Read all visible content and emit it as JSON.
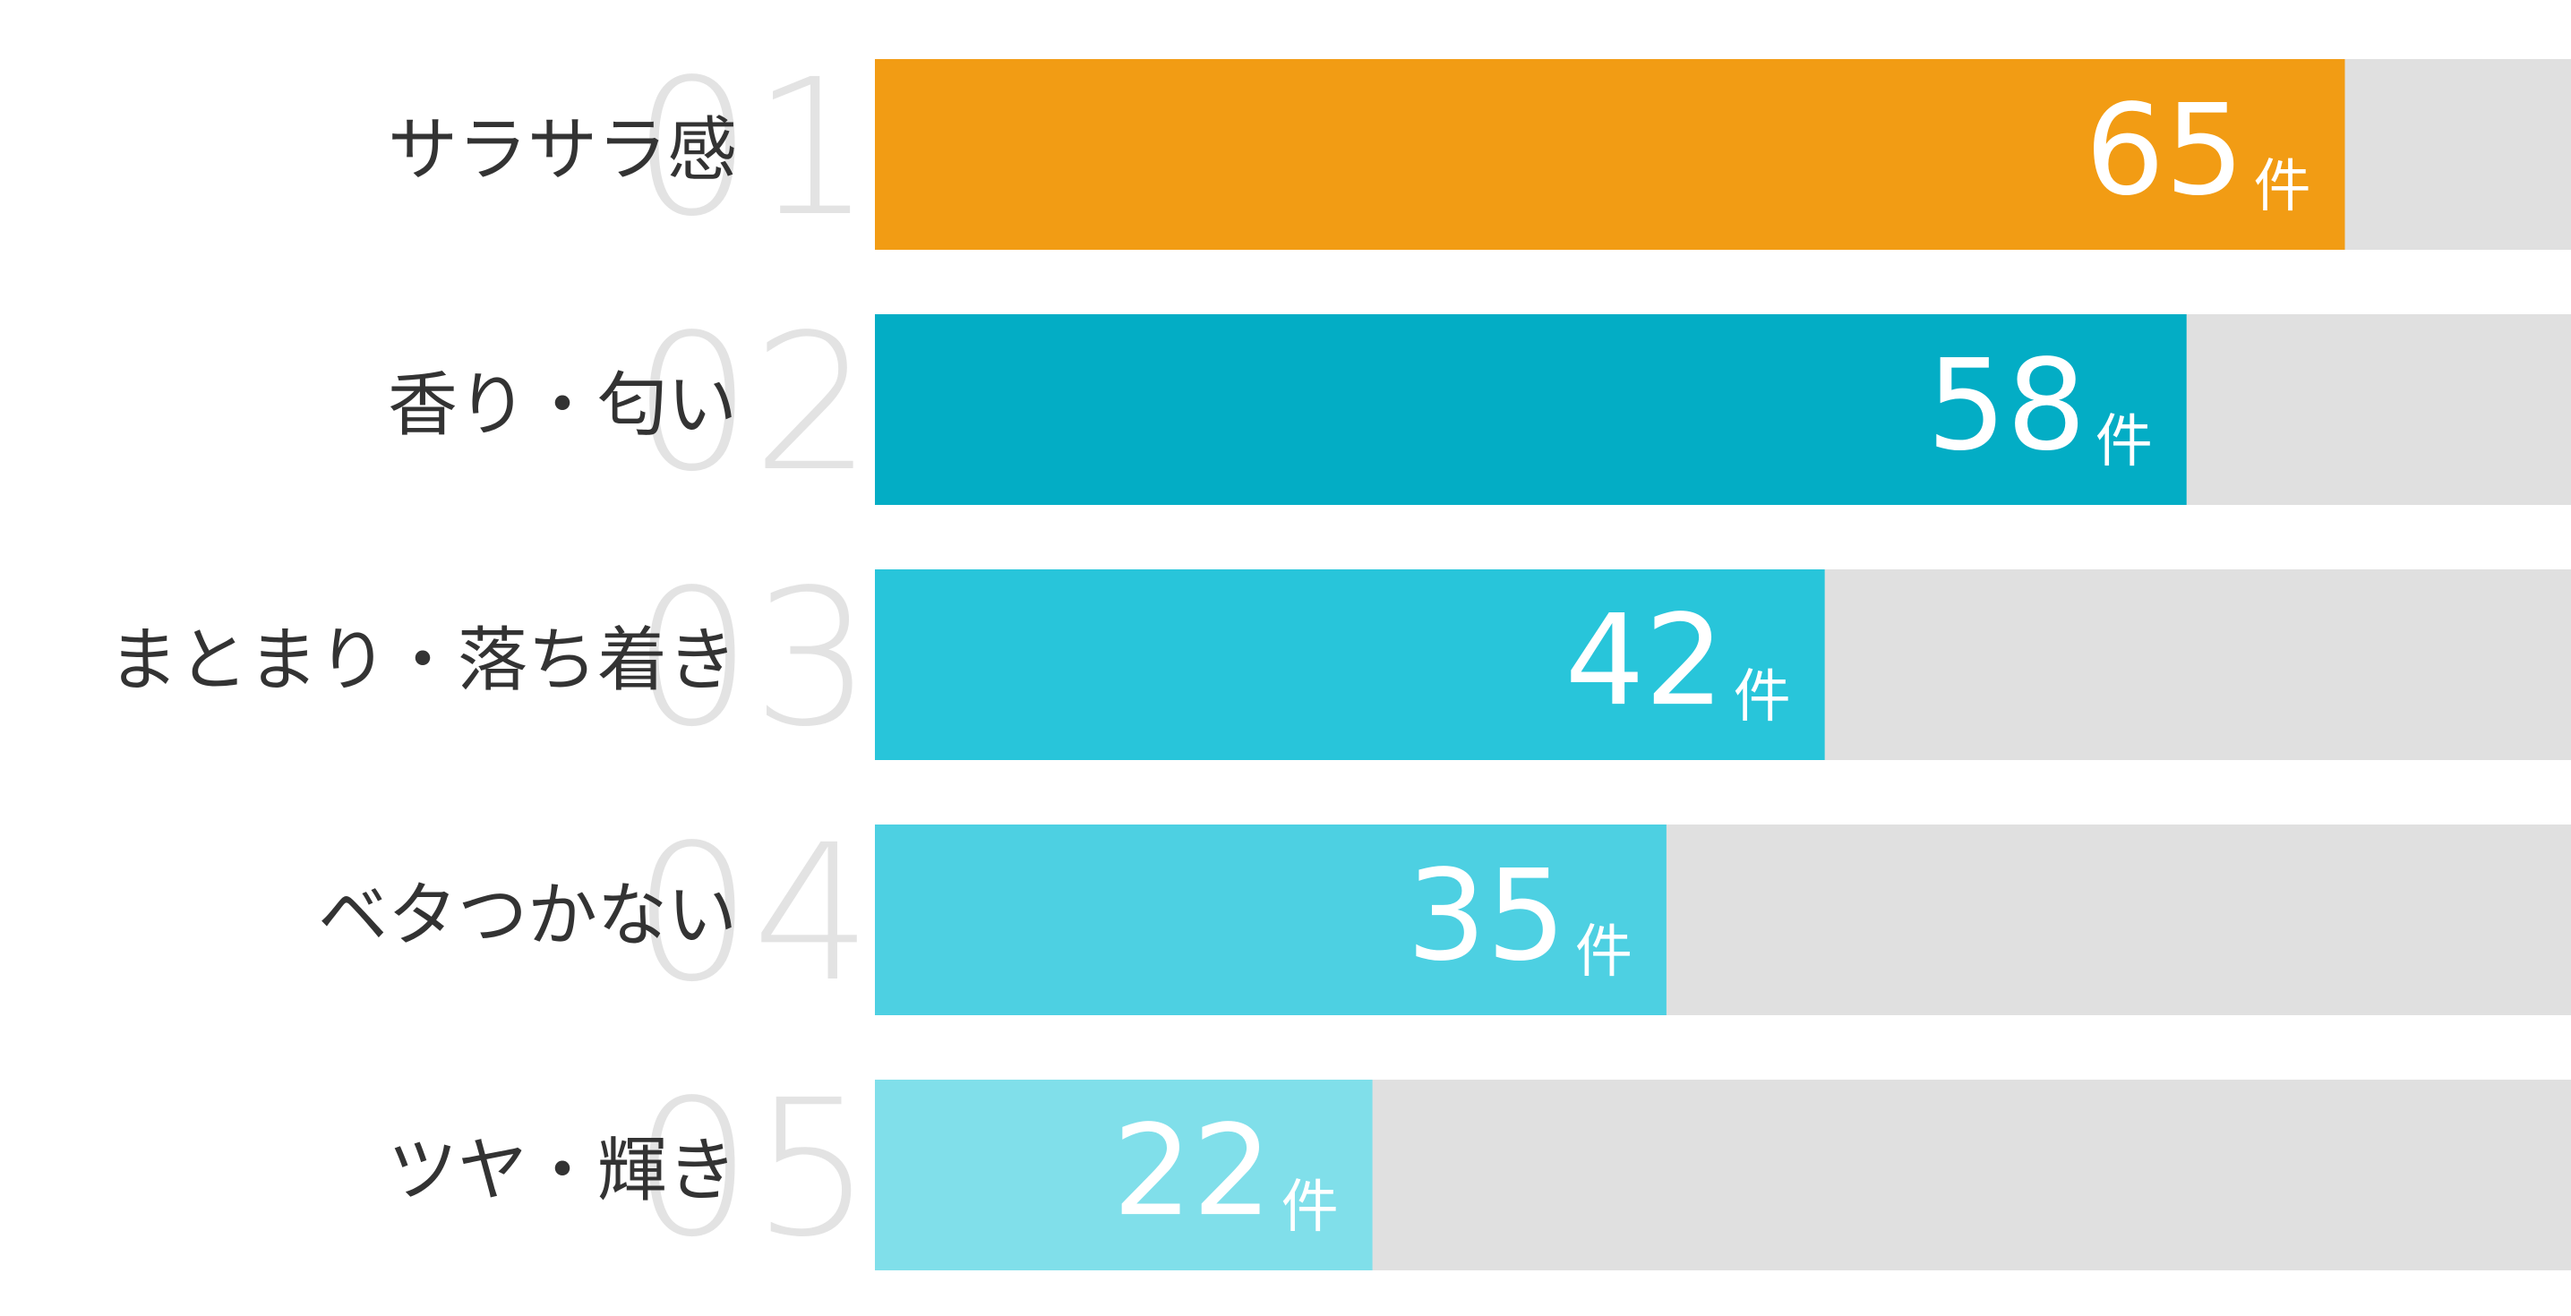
{
  "chart_data": {
    "type": "bar",
    "orientation": "horizontal",
    "categories": [
      "サラサラ感",
      "香り・匂い",
      "まとまり・落ち着き",
      "ベタつかない",
      "ツヤ・輝き"
    ],
    "ranks": [
      "01",
      "02",
      "03",
      "04",
      "05"
    ],
    "values": [
      65,
      58,
      42,
      35,
      22
    ],
    "unit": "件",
    "colors": [
      "#f29c14",
      "#03adc5",
      "#28c5da",
      "#4dd0e2",
      "#80dfea"
    ],
    "track_color": "#e0e0e0",
    "xlim": [
      0,
      75
    ]
  }
}
